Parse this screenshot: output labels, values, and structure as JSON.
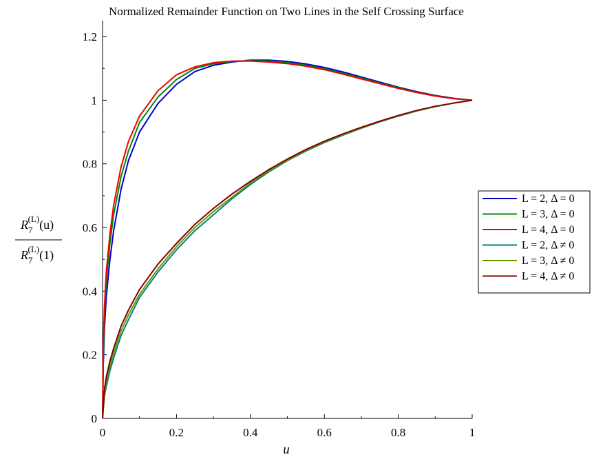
{
  "chart_data": {
    "type": "line",
    "title": "Normalized Remainder Function on Two Lines in the Self Crossing Surface",
    "xlabel": "u",
    "ylabel": {
      "numerator": "R",
      "denominator": "R",
      "sub": "7",
      "sup": "(L)",
      "num_arg": "(u)",
      "den_arg": "(1)"
    },
    "xlim": [
      0,
      1
    ],
    "ylim": [
      0,
      1.25
    ],
    "x_ticks": [
      "0",
      "0.2",
      "0.4",
      "0.6",
      "0.8",
      "1"
    ],
    "x_tick_values": [
      0,
      0.2,
      0.4,
      0.6,
      0.8,
      1
    ],
    "y_ticks": [
      "0",
      "0.2",
      "0.4",
      "0.6",
      "0.8",
      "1",
      "1.2"
    ],
    "y_tick_values": [
      0,
      0.2,
      0.4,
      0.6,
      0.8,
      1,
      1.2
    ],
    "legend_position": "right",
    "series": [
      {
        "name": "L = 2, Δ = 0",
        "color": "#0000cc",
        "x": [
          0,
          0.002,
          0.005,
          0.01,
          0.02,
          0.03,
          0.05,
          0.07,
          0.1,
          0.15,
          0.2,
          0.25,
          0.3,
          0.35,
          0.4,
          0.45,
          0.5,
          0.55,
          0.6,
          0.65,
          0.7,
          0.75,
          0.8,
          0.85,
          0.9,
          0.95,
          1.0
        ],
        "y": [
          0,
          0.17,
          0.28,
          0.38,
          0.5,
          0.59,
          0.72,
          0.81,
          0.9,
          0.99,
          1.05,
          1.09,
          1.11,
          1.12,
          1.126,
          1.126,
          1.122,
          1.114,
          1.103,
          1.089,
          1.073,
          1.057,
          1.041,
          1.027,
          1.015,
          1.006,
          1.0
        ]
      },
      {
        "name": "L = 3, Δ = 0",
        "color": "#008800",
        "x": [
          0,
          0.002,
          0.005,
          0.01,
          0.02,
          0.03,
          0.05,
          0.07,
          0.1,
          0.15,
          0.2,
          0.25,
          0.3,
          0.35,
          0.4,
          0.45,
          0.5,
          0.55,
          0.6,
          0.65,
          0.7,
          0.75,
          0.8,
          0.85,
          0.9,
          0.95,
          1.0
        ],
        "y": [
          0,
          0.2,
          0.32,
          0.43,
          0.55,
          0.64,
          0.76,
          0.84,
          0.93,
          1.01,
          1.065,
          1.1,
          1.115,
          1.122,
          1.124,
          1.123,
          1.118,
          1.11,
          1.099,
          1.085,
          1.07,
          1.054,
          1.039,
          1.025,
          1.014,
          1.005,
          1.0
        ]
      },
      {
        "name": "L = 4, Δ = 0",
        "color": "#ee0000",
        "x": [
          0,
          0.002,
          0.005,
          0.01,
          0.02,
          0.03,
          0.05,
          0.07,
          0.1,
          0.15,
          0.2,
          0.25,
          0.3,
          0.35,
          0.4,
          0.45,
          0.5,
          0.55,
          0.6,
          0.65,
          0.7,
          0.75,
          0.8,
          0.85,
          0.9,
          0.95,
          1.0
        ],
        "y": [
          0,
          0.23,
          0.35,
          0.46,
          0.58,
          0.67,
          0.79,
          0.87,
          0.95,
          1.03,
          1.08,
          1.105,
          1.118,
          1.123,
          1.123,
          1.12,
          1.115,
          1.107,
          1.096,
          1.082,
          1.067,
          1.052,
          1.037,
          1.024,
          1.013,
          1.005,
          1.0
        ]
      },
      {
        "name": "L = 2, Δ ≠ 0",
        "color": "#008080",
        "x": [
          0,
          0.005,
          0.01,
          0.02,
          0.03,
          0.05,
          0.07,
          0.1,
          0.15,
          0.2,
          0.25,
          0.3,
          0.35,
          0.4,
          0.45,
          0.5,
          0.55,
          0.6,
          0.65,
          0.7,
          0.75,
          0.8,
          0.85,
          0.9,
          0.95,
          1.0
        ],
        "y": [
          0,
          0.07,
          0.1,
          0.15,
          0.19,
          0.26,
          0.31,
          0.38,
          0.46,
          0.53,
          0.59,
          0.64,
          0.69,
          0.735,
          0.775,
          0.81,
          0.84,
          0.867,
          0.89,
          0.912,
          0.932,
          0.95,
          0.966,
          0.98,
          0.991,
          1.0
        ]
      },
      {
        "name": "L = 3, Δ ≠ 0",
        "color": "#669900",
        "x": [
          0,
          0.005,
          0.01,
          0.02,
          0.03,
          0.05,
          0.07,
          0.1,
          0.15,
          0.2,
          0.25,
          0.3,
          0.35,
          0.4,
          0.45,
          0.5,
          0.55,
          0.6,
          0.65,
          0.7,
          0.75,
          0.8,
          0.85,
          0.9,
          0.95,
          1.0
        ],
        "y": [
          0,
          0.08,
          0.115,
          0.165,
          0.205,
          0.275,
          0.325,
          0.39,
          0.47,
          0.54,
          0.6,
          0.65,
          0.695,
          0.74,
          0.778,
          0.812,
          0.842,
          0.869,
          0.892,
          0.913,
          0.933,
          0.951,
          0.967,
          0.98,
          0.991,
          1.0
        ]
      },
      {
        "name": "L = 4, Δ ≠ 0",
        "color": "#800000",
        "x": [
          0,
          0.005,
          0.01,
          0.02,
          0.03,
          0.05,
          0.07,
          0.1,
          0.15,
          0.2,
          0.25,
          0.3,
          0.35,
          0.4,
          0.45,
          0.5,
          0.55,
          0.6,
          0.65,
          0.7,
          0.75,
          0.8,
          0.85,
          0.9,
          0.95,
          1.0
        ],
        "y": [
          0,
          0.09,
          0.13,
          0.18,
          0.22,
          0.29,
          0.34,
          0.405,
          0.485,
          0.55,
          0.61,
          0.66,
          0.705,
          0.745,
          0.782,
          0.815,
          0.845,
          0.871,
          0.894,
          0.915,
          0.934,
          0.952,
          0.968,
          0.981,
          0.991,
          1.0
        ]
      }
    ]
  }
}
